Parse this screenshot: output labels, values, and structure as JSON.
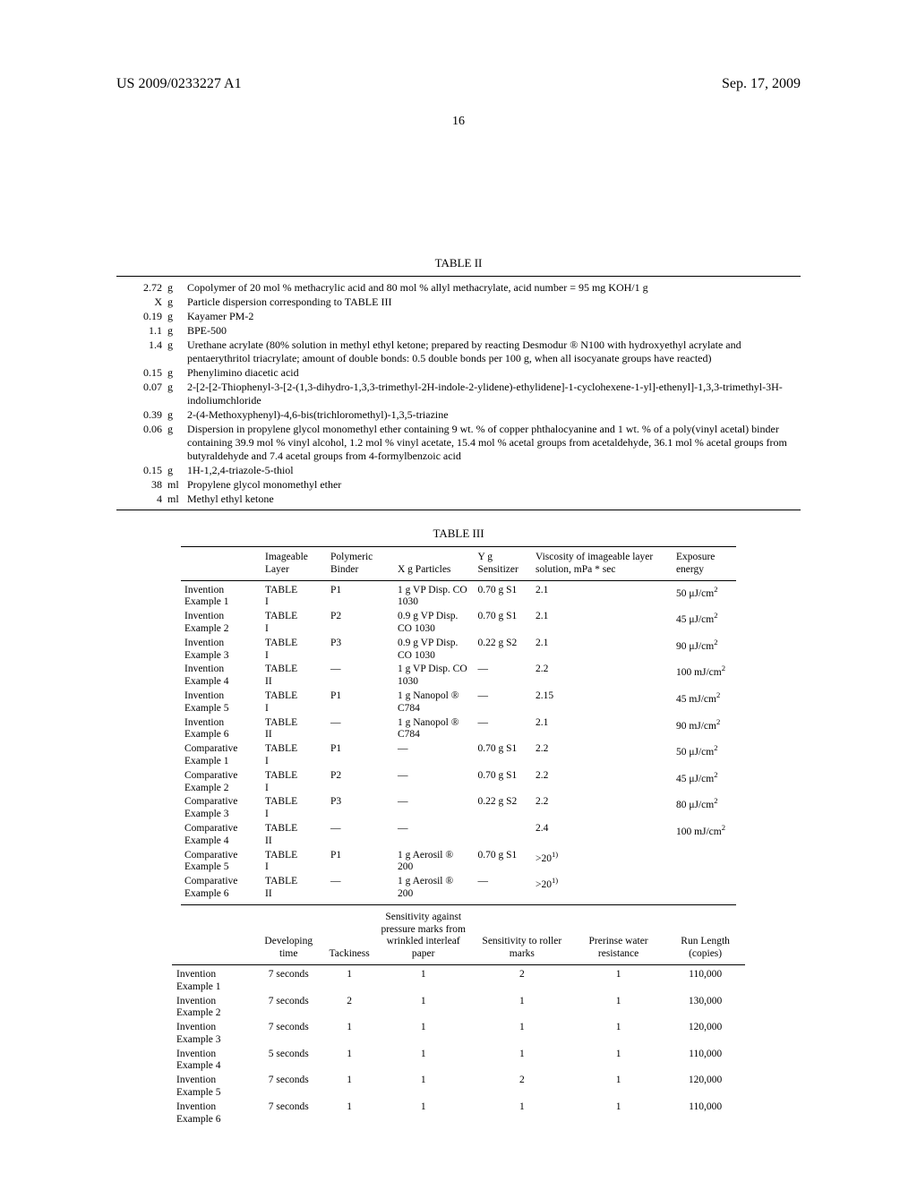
{
  "header": {
    "pub_no": "US 2009/0233227 A1",
    "date": "Sep. 17, 2009",
    "page": "16"
  },
  "table2": {
    "title": "TABLE II",
    "rows": [
      {
        "amt": "2.72",
        "unit": "g",
        "desc": "Copolymer of 20 mol % methacrylic acid and 80 mol % allyl methacrylate, acid number = 95 mg KOH/1 g"
      },
      {
        "amt": "X",
        "unit": "g",
        "desc": "Particle dispersion corresponding to TABLE III"
      },
      {
        "amt": "0.19",
        "unit": "g",
        "desc": "Kayamer PM-2"
      },
      {
        "amt": "1.1",
        "unit": "g",
        "desc": "BPE-500"
      },
      {
        "amt": "1.4",
        "unit": "g",
        "desc": "Urethane acrylate (80% solution in methyl ethyl ketone; prepared by reacting Desmodur ® N100 with hydroxyethyl acrylate and pentaerythritol triacrylate; amount of double bonds: 0.5 double bonds per 100 g, when all isocyanate groups have reacted)"
      },
      {
        "amt": "0.15",
        "unit": "g",
        "desc": "Phenylimino diacetic acid"
      },
      {
        "amt": "0.07",
        "unit": "g",
        "desc": "2-[2-[2-Thiophenyl-3-[2-(1,3-dihydro-1,3,3-trimethyl-2H-indole-2-ylidene)-ethylidene]-1-cyclohexene-1-yl]-ethenyl]-1,3,3-trimethyl-3H-indoliumchloride"
      },
      {
        "amt": "0.39",
        "unit": "g",
        "desc": "2-(4-Methoxyphenyl)-4,6-bis(trichloromethyl)-1,3,5-triazine"
      },
      {
        "amt": "0.06",
        "unit": "g",
        "desc": "Dispersion in propylene glycol monomethyl ether containing 9 wt. % of copper phthalocyanine and 1 wt. % of a poly(vinyl acetal) binder containing 39.9 mol % vinyl alcohol, 1.2 mol % vinyl acetate, 15.4 mol % acetal groups from acetaldehyde, 36.1 mol % acetal groups from butyraldehyde and 7.4 acetal groups from 4-formylbenzoic acid"
      },
      {
        "amt": "0.15",
        "unit": "g",
        "desc": "1H-1,2,4-triazole-5-thiol"
      },
      {
        "amt": "38",
        "unit": "ml",
        "desc": "Propylene glycol monomethyl ether"
      },
      {
        "amt": "4",
        "unit": "ml",
        "desc": "Methyl ethyl ketone"
      }
    ]
  },
  "table3": {
    "title": "TABLE III",
    "headers": {
      "c1": "Imageable Layer",
      "c2": "Polymeric Binder",
      "c3": "X g Particles",
      "c4": "Y g Sensitizer",
      "c5": "Viscosity of imageable layer solution, mPa * sec",
      "c6": "Exposure energy"
    },
    "rows": [
      {
        "label": "Invention Example 1",
        "c1": "TABLE I",
        "c2": "P1",
        "c3": "1 g VP Disp. CO 1030",
        "c4": "0.70 g S1",
        "c5": "2.1",
        "c6": "50 μJ/cm²"
      },
      {
        "label": "Invention Example 2",
        "c1": "TABLE I",
        "c2": "P2",
        "c3": "0.9 g VP Disp. CO 1030",
        "c4": "0.70 g S1",
        "c5": "2.1",
        "c6": "45 μJ/cm²"
      },
      {
        "label": "Invention Example 3",
        "c1": "TABLE I",
        "c2": "P3",
        "c3": "0.9 g VP Disp. CO 1030",
        "c4": "0.22 g S2",
        "c5": "2.1",
        "c6": "90 μJ/cm²"
      },
      {
        "label": "Invention Example 4",
        "c1": "TABLE II",
        "c2": "—",
        "c3": "1 g VP Disp. CO 1030",
        "c4": "—",
        "c5": "2.2",
        "c6": "100 mJ/cm²"
      },
      {
        "label": "Invention Example 5",
        "c1": "TABLE I",
        "c2": "P1",
        "c3": "1 g Nanopol ® C784",
        "c4": "—",
        "c5": "2.15",
        "c6": "45 mJ/cm²"
      },
      {
        "label": "Invention Example 6",
        "c1": "TABLE II",
        "c2": "—",
        "c3": "1 g Nanopol ® C784",
        "c4": "—",
        "c5": "2.1",
        "c6": "90 mJ/cm²"
      },
      {
        "label": "Comparative Example 1",
        "c1": "TABLE I",
        "c2": "P1",
        "c3": "—",
        "c4": "0.70 g S1",
        "c5": "2.2",
        "c6": "50 μJ/cm²"
      },
      {
        "label": "Comparative Example 2",
        "c1": "TABLE I",
        "c2": "P2",
        "c3": "—",
        "c4": "0.70 g S1",
        "c5": "2.2",
        "c6": "45 μJ/cm²"
      },
      {
        "label": "Comparative Example 3",
        "c1": "TABLE I",
        "c2": "P3",
        "c3": "—",
        "c4": "0.22 g S2",
        "c5": "2.2",
        "c6": "80 μJ/cm²"
      },
      {
        "label": "Comparative Example 4",
        "c1": "TABLE II",
        "c2": "—",
        "c3": "—",
        "c4": "",
        "c5": "2.4",
        "c6": "100 mJ/cm²"
      },
      {
        "label": "Comparative Example 5",
        "c1": "TABLE I",
        "c2": "P1",
        "c3": "1 g Aerosil ® 200",
        "c4": "0.70 g S1",
        "c5": ">20¹⁾",
        "c6": ""
      },
      {
        "label": "Comparative Example 6",
        "c1": "TABLE II",
        "c2": "—",
        "c3": "1 g Aerosil ® 200",
        "c4": "—",
        "c5": ">20¹⁾",
        "c6": ""
      }
    ],
    "headers2": {
      "c1": "Developing time",
      "c2": "Tackiness",
      "c3": "Sensitivity against pressure marks from wrinkled interleaf paper",
      "c4": "Sensitivity to roller marks",
      "c5": "Prerinse water resistance",
      "c6": "Run Length (copies)"
    },
    "rows2": [
      {
        "label": "Invention Example 1",
        "c1": "7 seconds",
        "c2": "1",
        "c3": "1",
        "c4": "2",
        "c5": "1",
        "c6": "110,000"
      },
      {
        "label": "Invention Example 2",
        "c1": "7 seconds",
        "c2": "2",
        "c3": "1",
        "c4": "1",
        "c5": "1",
        "c6": "130,000"
      },
      {
        "label": "Invention Example 3",
        "c1": "7 seconds",
        "c2": "1",
        "c3": "1",
        "c4": "1",
        "c5": "1",
        "c6": "120,000"
      },
      {
        "label": "Invention Example 4",
        "c1": "5 seconds",
        "c2": "1",
        "c3": "1",
        "c4": "1",
        "c5": "1",
        "c6": "110,000"
      },
      {
        "label": "Invention Example 5",
        "c1": "7 seconds",
        "c2": "1",
        "c3": "1",
        "c4": "2",
        "c5": "1",
        "c6": "120,000"
      },
      {
        "label": "Invention Example 6",
        "c1": "7 seconds",
        "c2": "1",
        "c3": "1",
        "c4": "1",
        "c5": "1",
        "c6": "110,000"
      }
    ]
  }
}
